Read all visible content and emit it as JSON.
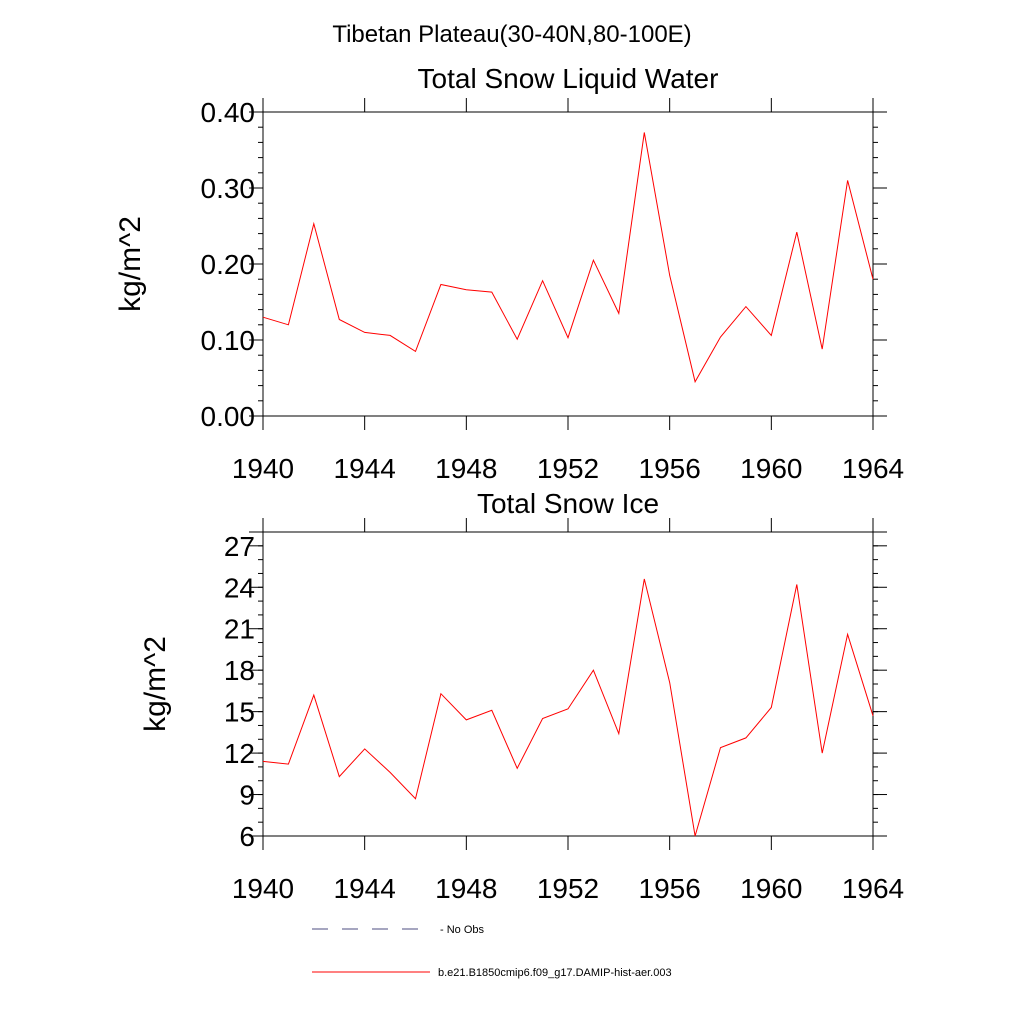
{
  "figure": {
    "title": "Tibetan Plateau(30-40N,80-100E)"
  },
  "chart_data": [
    {
      "type": "line",
      "title": "Total Snow Liquid Water",
      "xlabel": "",
      "ylabel": "kg/m^2",
      "xlim": [
        1940,
        1964
      ],
      "ylim": [
        0.0,
        0.4
      ],
      "x_ticks": [
        1940,
        1944,
        1948,
        1952,
        1956,
        1960,
        1964
      ],
      "x_tick_labels": [
        "1940",
        "1944",
        "1948",
        "1952",
        "1956",
        "1960",
        "1964"
      ],
      "y_ticks": [
        0.0,
        0.1,
        0.2,
        0.3,
        0.4
      ],
      "y_tick_labels": [
        "0.00",
        "0.10",
        "0.20",
        "0.30",
        "0.40"
      ],
      "y_minor_step": 0.02,
      "grid": false,
      "series": [
        {
          "name": "b.e21.B1850cmip6.f09_g17.DAMIP-hist-aer.003",
          "color": "#ff0000",
          "x": [
            1940,
            1941,
            1942,
            1943,
            1944,
            1945,
            1946,
            1947,
            1948,
            1949,
            1950,
            1951,
            1952,
            1953,
            1954,
            1955,
            1956,
            1957,
            1958,
            1959,
            1960,
            1961,
            1962,
            1963,
            1964
          ],
          "values": [
            0.13,
            0.12,
            0.253,
            0.127,
            0.11,
            0.106,
            0.085,
            0.173,
            0.166,
            0.163,
            0.101,
            0.178,
            0.103,
            0.205,
            0.135,
            0.373,
            0.185,
            0.045,
            0.104,
            0.144,
            0.106,
            0.242,
            0.088,
            0.31,
            0.18
          ]
        }
      ]
    },
    {
      "type": "line",
      "title": "Total Snow Ice",
      "xlabel": "",
      "ylabel": "kg/m^2",
      "xlim": [
        1940,
        1964
      ],
      "ylim": [
        6,
        28
      ],
      "x_ticks": [
        1940,
        1944,
        1948,
        1952,
        1956,
        1960,
        1964
      ],
      "x_tick_labels": [
        "1940",
        "1944",
        "1948",
        "1952",
        "1956",
        "1960",
        "1964"
      ],
      "y_ticks": [
        6,
        9,
        12,
        15,
        18,
        21,
        24,
        27
      ],
      "y_tick_labels": [
        "6",
        "9",
        "12",
        "15",
        "18",
        "21",
        "24",
        "27"
      ],
      "y_minor_step": 1,
      "grid": false,
      "series": [
        {
          "name": "b.e21.B1850cmip6.f09_g17.DAMIP-hist-aer.003",
          "color": "#ff0000",
          "x": [
            1940,
            1941,
            1942,
            1943,
            1944,
            1945,
            1946,
            1947,
            1948,
            1949,
            1950,
            1951,
            1952,
            1953,
            1954,
            1955,
            1956,
            1957,
            1958,
            1959,
            1960,
            1961,
            1962,
            1963,
            1964
          ],
          "values": [
            11.4,
            11.2,
            16.2,
            10.3,
            12.3,
            10.6,
            8.7,
            16.3,
            14.4,
            15.1,
            10.9,
            14.5,
            15.2,
            18.0,
            13.4,
            24.6,
            17.1,
            6.0,
            12.4,
            13.1,
            15.3,
            24.2,
            12.0,
            20.6,
            14.7
          ]
        }
      ]
    }
  ],
  "legend": {
    "placement": "bottom-center",
    "entries": [
      {
        "label": "No Obs",
        "style": "dashed",
        "color": "#4d4d80"
      },
      {
        "label": "b.e21.B1850cmip6.f09_g17.DAMIP-hist-aer.003",
        "style": "solid",
        "color": "#ff0000"
      }
    ]
  }
}
